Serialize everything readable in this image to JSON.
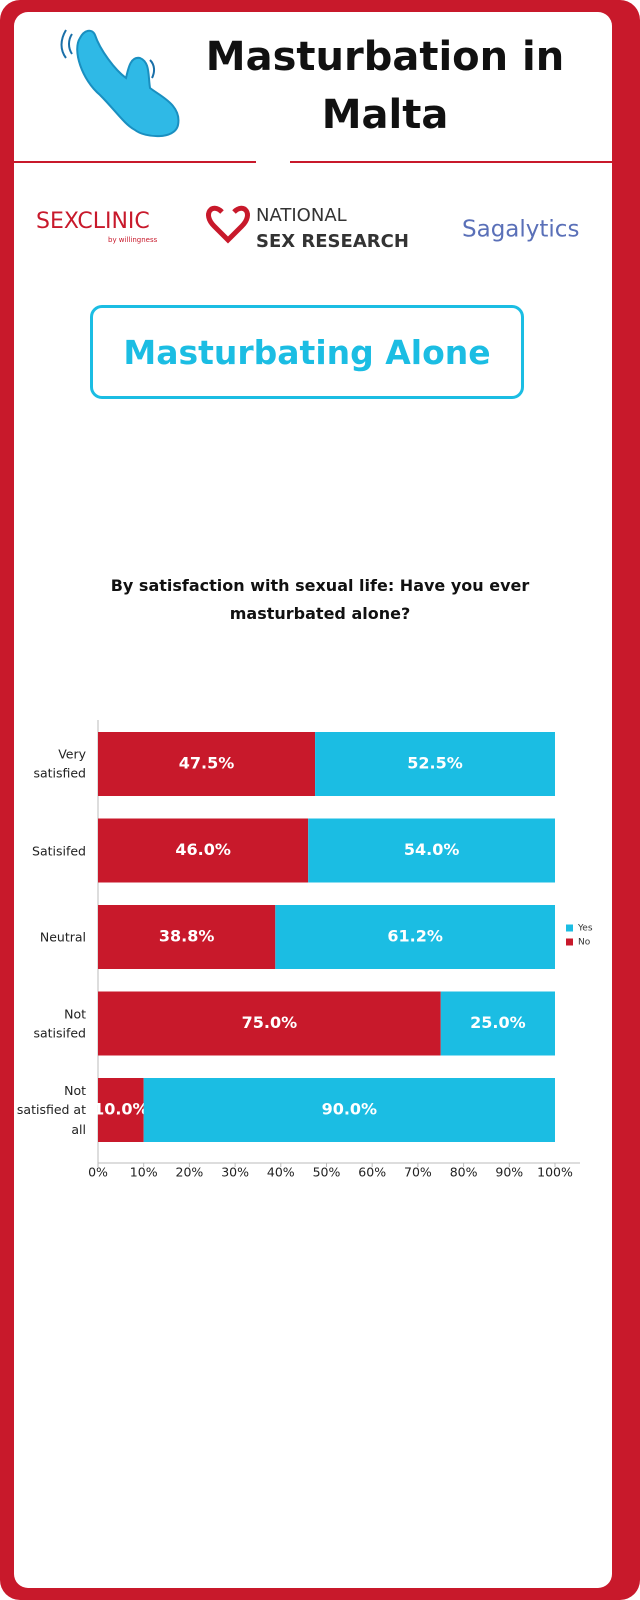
{
  "header": {
    "title": "Masturbation in Malta"
  },
  "logos": {
    "sexclinic": "SEXCLINIC",
    "sexclinic_by": "by willingness",
    "nsr_top": "NATIONAL",
    "nsr_bottom": "SEX RESEARCH",
    "sagalytics": "Sagalytics"
  },
  "section_title": "Masturbating Alone",
  "chart_data": {
    "type": "bar",
    "orientation": "horizontal",
    "stacked": true,
    "title": "By satisfaction with sexual life: Have you ever masturbated alone?",
    "categories": [
      "Very satisfied",
      "Satisifed",
      "Neutral",
      "Not satisifed",
      "Not satisfied at all"
    ],
    "series": [
      {
        "name": "No",
        "color": "#c8192b",
        "values": [
          47.5,
          46.0,
          38.8,
          75.0,
          10.0
        ],
        "value_labels": [
          "47.5%",
          "46.0%",
          "38.8%",
          "75.0%",
          "10.0%"
        ]
      },
      {
        "name": "Yes",
        "color": "#1bbde3",
        "values": [
          52.5,
          54.0,
          61.2,
          25.0,
          90.0
        ],
        "value_labels": [
          "52.5%",
          "54.0%",
          "61.2%",
          "25.0%",
          "90.0%"
        ]
      }
    ],
    "xlim": [
      0,
      100
    ],
    "xticks": [
      {
        "value": 0,
        "label": "0%"
      },
      {
        "value": 10,
        "label": "10%"
      },
      {
        "value": 20,
        "label": "20%"
      },
      {
        "value": 30,
        "label": "30%"
      },
      {
        "value": 40,
        "label": "40%"
      },
      {
        "value": 50,
        "label": "50%"
      },
      {
        "value": 60,
        "label": "60%"
      },
      {
        "value": 70,
        "label": "70%"
      },
      {
        "value": 80,
        "label": "80%"
      },
      {
        "value": 90,
        "label": "90%"
      },
      {
        "value": 100,
        "label": "100%"
      }
    ],
    "grid": false,
    "legend": "right"
  }
}
